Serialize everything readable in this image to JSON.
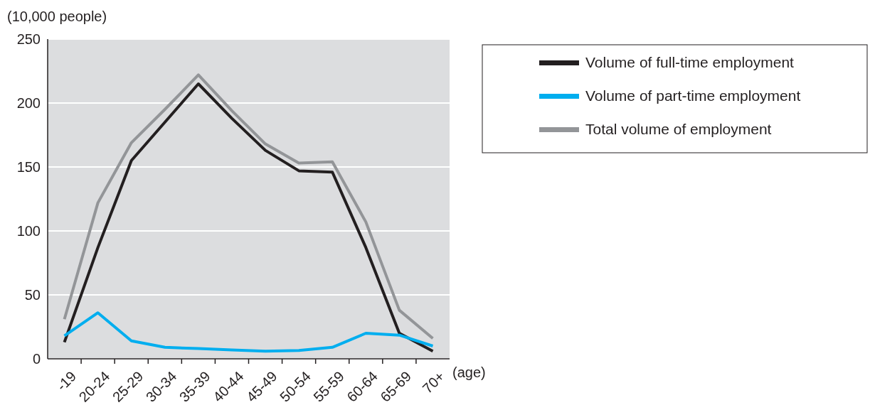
{
  "chart_data": {
    "type": "line",
    "ylabel": "(10,000 people)",
    "xlabel": "(age)",
    "categories": [
      "-19",
      "20-24",
      "25-29",
      "30-34",
      "35-39",
      "40-44",
      "45-49",
      "50-54",
      "55-59",
      "60-64",
      "65-69",
      "70+"
    ],
    "series": [
      {
        "name": "Volume of full-time employment",
        "color": "#231f20",
        "values": [
          13,
          87,
          155,
          185,
          215,
          188,
          163,
          147,
          146,
          87,
          20,
          6
        ]
      },
      {
        "name": "Volume of part-time employment",
        "color": "#00aeef",
        "values": [
          18,
          36,
          14,
          9,
          8,
          7,
          6,
          6.5,
          9,
          20,
          18.5,
          10
        ]
      },
      {
        "name": "Total volume of employment",
        "color": "#939598",
        "values": [
          31,
          122,
          169,
          195,
          222,
          194,
          168,
          153,
          154,
          107,
          38,
          16
        ]
      }
    ],
    "ylim": [
      0,
      250
    ],
    "yticks": [
      0,
      50,
      100,
      150,
      200,
      250
    ],
    "grid": "y",
    "legend": "top right",
    "marker": "none",
    "line_style": "solid"
  }
}
